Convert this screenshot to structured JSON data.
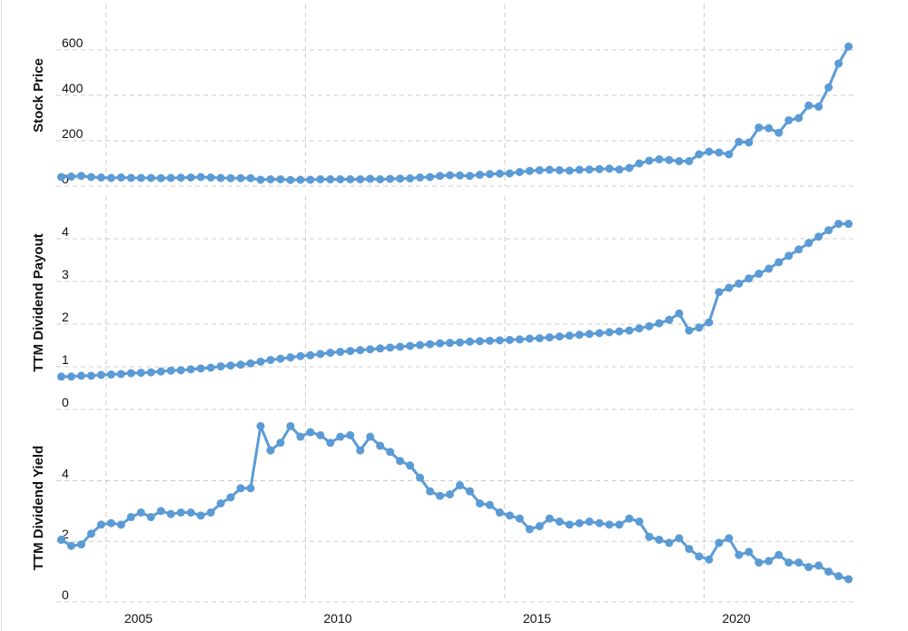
{
  "chart_data": [
    {
      "type": "line",
      "ylabel": "Stock Price",
      "color": "#5b9bd5",
      "grid": true,
      "xlim": [
        2003.75,
        2023.75
      ],
      "xticks": [
        2005,
        2010,
        2015,
        2020
      ],
      "ylim": [
        0,
        800
      ],
      "yticks": [
        0,
        200,
        400,
        600
      ],
      "x": [
        2003.875,
        2004.125,
        2004.375,
        2004.625,
        2004.875,
        2005.125,
        2005.375,
        2005.625,
        2005.875,
        2006.125,
        2006.375,
        2006.625,
        2006.875,
        2007.125,
        2007.375,
        2007.625,
        2007.875,
        2008.125,
        2008.375,
        2008.625,
        2008.875,
        2009.125,
        2009.375,
        2009.625,
        2009.875,
        2010.125,
        2010.375,
        2010.625,
        2010.875,
        2011.125,
        2011.375,
        2011.625,
        2011.875,
        2012.125,
        2012.375,
        2012.625,
        2012.875,
        2013.125,
        2013.375,
        2013.625,
        2013.875,
        2014.125,
        2014.375,
        2014.625,
        2014.875,
        2015.125,
        2015.375,
        2015.625,
        2015.875,
        2016.125,
        2016.375,
        2016.625,
        2016.875,
        2017.125,
        2017.375,
        2017.625,
        2017.875,
        2018.125,
        2018.375,
        2018.625,
        2018.875,
        2019.125,
        2019.375,
        2019.625,
        2019.875,
        2020.125,
        2020.375,
        2020.625,
        2020.875,
        2021.125,
        2021.375,
        2021.625,
        2021.875,
        2022.125,
        2022.375,
        2022.625,
        2022.875,
        2023.125,
        2023.375,
        2023.625
      ],
      "values": [
        40,
        42,
        45,
        40,
        38,
        36,
        38,
        36,
        36,
        36,
        35,
        36,
        37,
        38,
        40,
        38,
        36,
        35,
        35,
        35,
        28,
        30,
        30,
        27,
        28,
        28,
        30,
        30,
        30,
        30,
        30,
        32,
        30,
        32,
        33,
        34,
        38,
        40,
        45,
        48,
        47,
        45,
        50,
        53,
        55,
        56,
        62,
        67,
        70,
        72,
        70,
        68,
        72,
        73,
        75,
        77,
        73,
        80,
        100,
        112,
        118,
        115,
        110,
        110,
        140,
        152,
        148,
        140,
        195,
        192,
        258,
        255,
        235,
        290,
        300,
        355,
        350,
        435,
        540,
        615
      ]
    },
    {
      "type": "line",
      "ylabel": "TTM Dividend Payout",
      "color": "#5b9bd5",
      "grid": true,
      "xlim": [
        2003.75,
        2023.75
      ],
      "xticks": [
        2005,
        2010,
        2015,
        2020
      ],
      "ylim": [
        0,
        5
      ],
      "yticks": [
        0,
        1,
        2,
        3,
        4
      ],
      "x": [
        2003.875,
        2004.125,
        2004.375,
        2004.625,
        2004.875,
        2005.125,
        2005.375,
        2005.625,
        2005.875,
        2006.125,
        2006.375,
        2006.625,
        2006.875,
        2007.125,
        2007.375,
        2007.625,
        2007.875,
        2008.125,
        2008.375,
        2008.625,
        2008.875,
        2009.125,
        2009.375,
        2009.625,
        2009.875,
        2010.125,
        2010.375,
        2010.625,
        2010.875,
        2011.125,
        2011.375,
        2011.625,
        2011.875,
        2012.125,
        2012.375,
        2012.625,
        2012.875,
        2013.125,
        2013.375,
        2013.625,
        2013.875,
        2014.125,
        2014.375,
        2014.625,
        2014.875,
        2015.125,
        2015.375,
        2015.625,
        2015.875,
        2016.125,
        2016.375,
        2016.625,
        2016.875,
        2017.125,
        2017.375,
        2017.625,
        2017.875,
        2018.125,
        2018.375,
        2018.625,
        2018.875,
        2019.125,
        2019.375,
        2019.625,
        2019.875,
        2020.125,
        2020.375,
        2020.625,
        2020.875,
        2021.125,
        2021.375,
        2021.625,
        2021.875,
        2022.125,
        2022.375,
        2022.625,
        2022.875,
        2023.125,
        2023.375,
        2023.625
      ],
      "values": [
        0.77,
        0.77,
        0.79,
        0.79,
        0.81,
        0.82,
        0.83,
        0.85,
        0.86,
        0.87,
        0.89,
        0.91,
        0.92,
        0.94,
        0.96,
        0.98,
        1.01,
        1.03,
        1.05,
        1.08,
        1.12,
        1.16,
        1.19,
        1.22,
        1.25,
        1.27,
        1.3,
        1.33,
        1.35,
        1.37,
        1.39,
        1.41,
        1.43,
        1.45,
        1.47,
        1.49,
        1.51,
        1.53,
        1.55,
        1.56,
        1.57,
        1.59,
        1.6,
        1.61,
        1.62,
        1.63,
        1.64,
        1.66,
        1.67,
        1.69,
        1.71,
        1.73,
        1.75,
        1.77,
        1.79,
        1.81,
        1.83,
        1.85,
        1.9,
        1.95,
        2.02,
        2.1,
        2.25,
        1.85,
        1.92,
        2.04,
        2.75,
        2.85,
        2.95,
        3.07,
        3.18,
        3.3,
        3.45,
        3.6,
        3.75,
        3.9,
        4.05,
        4.2,
        4.35,
        4.35
      ]
    },
    {
      "type": "line",
      "ylabel": "TTM Dividend Yield",
      "color": "#5b9bd5",
      "grid": true,
      "xlim": [
        2003.75,
        2023.75
      ],
      "xticks": [
        2005,
        2010,
        2015,
        2020
      ],
      "ylim": [
        0,
        6.2
      ],
      "yticks": [
        0,
        2,
        4
      ],
      "x": [
        2003.875,
        2004.125,
        2004.375,
        2004.625,
        2004.875,
        2005.125,
        2005.375,
        2005.625,
        2005.875,
        2006.125,
        2006.375,
        2006.625,
        2006.875,
        2007.125,
        2007.375,
        2007.625,
        2007.875,
        2008.125,
        2008.375,
        2008.625,
        2008.875,
        2009.125,
        2009.375,
        2009.625,
        2009.875,
        2010.125,
        2010.375,
        2010.625,
        2010.875,
        2011.125,
        2011.375,
        2011.625,
        2011.875,
        2012.125,
        2012.375,
        2012.625,
        2012.875,
        2013.125,
        2013.375,
        2013.625,
        2013.875,
        2014.125,
        2014.375,
        2014.625,
        2014.875,
        2015.125,
        2015.375,
        2015.625,
        2015.875,
        2016.125,
        2016.375,
        2016.625,
        2016.875,
        2017.125,
        2017.375,
        2017.625,
        2017.875,
        2018.125,
        2018.375,
        2018.625,
        2018.875,
        2019.125,
        2019.375,
        2019.625,
        2019.875,
        2020.125,
        2020.375,
        2020.625,
        2020.875,
        2021.125,
        2021.375,
        2021.625,
        2021.875,
        2022.125,
        2022.375,
        2022.625,
        2022.875,
        2023.125,
        2023.375,
        2023.625
      ],
      "values": [
        2.05,
        1.85,
        1.9,
        2.25,
        2.55,
        2.6,
        2.55,
        2.8,
        2.95,
        2.8,
        3.0,
        2.9,
        2.95,
        2.95,
        2.85,
        2.95,
        3.25,
        3.45,
        3.75,
        3.75,
        5.8,
        5.0,
        5.25,
        5.8,
        5.45,
        5.6,
        5.5,
        5.25,
        5.45,
        5.5,
        5.0,
        5.45,
        5.15,
        4.95,
        4.65,
        4.5,
        4.1,
        3.65,
        3.5,
        3.55,
        3.85,
        3.65,
        3.25,
        3.2,
        2.95,
        2.85,
        2.75,
        2.4,
        2.5,
        2.75,
        2.65,
        2.55,
        2.6,
        2.65,
        2.6,
        2.55,
        2.55,
        2.75,
        2.65,
        2.15,
        2.05,
        1.95,
        2.1,
        1.75,
        1.5,
        1.4,
        1.95,
        2.1,
        1.55,
        1.65,
        1.3,
        1.35,
        1.55,
        1.3,
        1.3,
        1.15,
        1.2,
        1.0,
        0.85,
        0.75
      ]
    }
  ]
}
